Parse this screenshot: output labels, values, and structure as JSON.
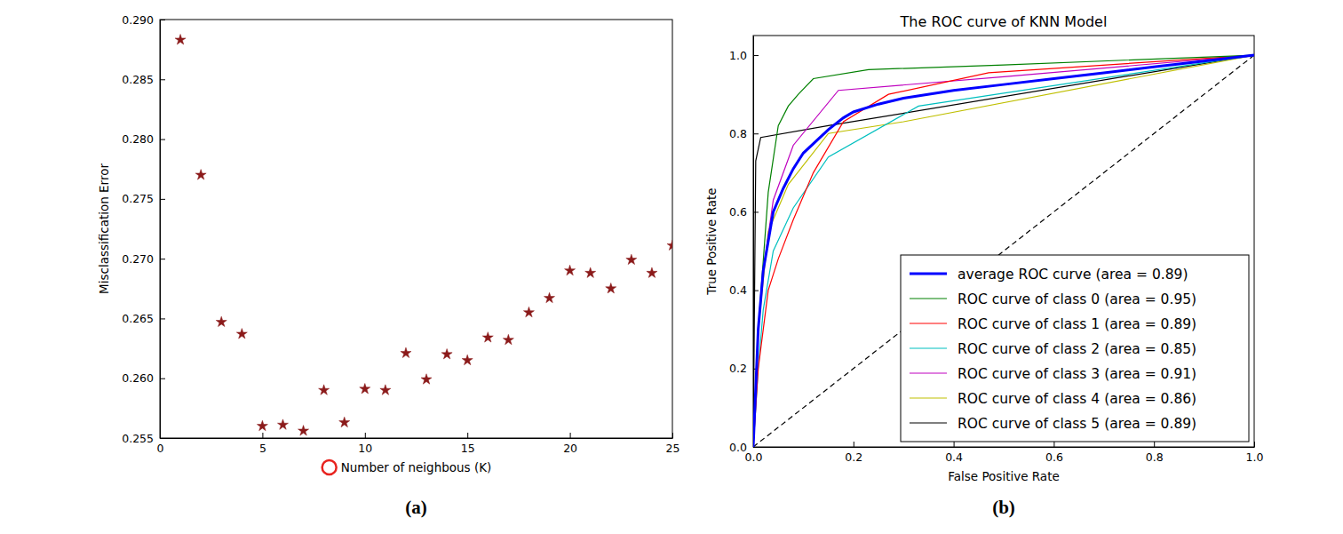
{
  "chart_data": [
    {
      "type": "scatter",
      "caption": "(a)",
      "x_label": "Number of neighbous (K)",
      "y_label": "Misclassification Error",
      "marker": "star",
      "color": "#8b1a1a",
      "x": [
        1,
        2,
        3,
        4,
        5,
        6,
        7,
        8,
        9,
        10,
        11,
        12,
        13,
        14,
        15,
        16,
        17,
        18,
        19,
        20,
        21,
        22,
        23,
        24,
        25
      ],
      "values": [
        0.2883,
        0.277,
        0.2647,
        0.2637,
        0.256,
        0.2561,
        0.2556,
        0.259,
        0.2563,
        0.2591,
        0.259,
        0.2621,
        0.2599,
        0.262,
        0.2615,
        0.2634,
        0.2632,
        0.2655,
        0.2667,
        0.269,
        0.2688,
        0.2675,
        0.2699,
        0.2688,
        0.2711
      ],
      "xlim": [
        0,
        25
      ],
      "ylim": [
        0.255,
        0.29
      ],
      "xticks": [
        0,
        5,
        10,
        15,
        20,
        25
      ],
      "yticks": [
        0.255,
        {
          "value": 0.26,
          "label": "0.260"
        },
        0.265,
        {
          "value": 0.27,
          "label": "0.270"
        },
        0.275,
        {
          "value": 0.28,
          "label": "0.280"
        },
        0.285,
        {
          "value": 0.29,
          "label": "0.290"
        }
      ]
    },
    {
      "type": "line",
      "title": "The ROC curve of KNN Model",
      "caption": "(b)",
      "x_label": "False Positive Rate",
      "y_label": "True Positive Rate",
      "legend": "lower right",
      "xlim": [
        0,
        1
      ],
      "ylim": [
        0,
        1.05
      ],
      "xticks": [
        {
          "value": 0,
          "label": "0.0"
        },
        {
          "value": 0.2,
          "label": "0.2"
        },
        {
          "value": 0.4,
          "label": "0.4"
        },
        {
          "value": 0.6,
          "label": "0.6"
        },
        {
          "value": 0.8,
          "label": "0.8"
        },
        {
          "value": 1,
          "label": "1.0"
        }
      ],
      "yticks": [
        {
          "value": 0,
          "label": "0.0"
        },
        {
          "value": 0.2,
          "label": "0.2"
        },
        {
          "value": 0.4,
          "label": "0.4"
        },
        {
          "value": 0.6,
          "label": "0.6"
        },
        {
          "value": 0.8,
          "label": "0.8"
        },
        {
          "value": 1,
          "label": "1.0"
        }
      ],
      "series": [
        {
          "name": "average ROC curve (area = 0.89)",
          "color": "#0000ff",
          "line_style": "solid",
          "x": [
            0,
            0.01,
            0.02,
            0.04,
            0.06,
            0.08,
            0.1,
            0.15,
            0.18,
            0.2,
            0.25,
            0.3,
            0.4,
            0.5,
            0.6,
            0.7,
            0.8,
            0.9,
            1
          ],
          "values": [
            0,
            0.3,
            0.45,
            0.6,
            0.66,
            0.71,
            0.75,
            0.81,
            0.84,
            0.855,
            0.875,
            0.89,
            0.91,
            0.925,
            0.94,
            0.955,
            0.97,
            0.985,
            1
          ]
        },
        {
          "name": "ROC curve of class 0 (area = 0.95)",
          "color": "#008000",
          "line_style": "solid",
          "x": [
            0,
            0.01,
            0.03,
            0.05,
            0.07,
            0.09,
            0.12,
            0.23,
            0.5,
            1
          ],
          "values": [
            0,
            0.3,
            0.65,
            0.82,
            0.87,
            0.9,
            0.94,
            0.963,
            0.975,
            1
          ]
        },
        {
          "name": "ROC curve of class 1 (area = 0.89)",
          "color": "#ff0000",
          "line_style": "solid",
          "x": [
            0,
            0.01,
            0.03,
            0.05,
            0.08,
            0.12,
            0.18,
            0.27,
            0.47,
            1
          ],
          "values": [
            0,
            0.2,
            0.4,
            0.48,
            0.58,
            0.7,
            0.83,
            0.9,
            0.955,
            1
          ]
        },
        {
          "name": "ROC curve of class 2 (area = 0.85)",
          "color": "#00bfbf",
          "line_style": "solid",
          "x": [
            0,
            0.01,
            0.02,
            0.04,
            0.08,
            0.15,
            0.33,
            1
          ],
          "values": [
            0,
            0.2,
            0.35,
            0.5,
            0.61,
            0.74,
            0.87,
            1
          ]
        },
        {
          "name": "ROC curve of class 3 (area = 0.91)",
          "color": "#bf00bf",
          "line_style": "solid",
          "x": [
            0,
            0.01,
            0.02,
            0.04,
            0.08,
            0.17,
            0.5,
            1
          ],
          "values": [
            0,
            0.3,
            0.45,
            0.63,
            0.77,
            0.91,
            0.945,
            1
          ]
        },
        {
          "name": "ROC curve of class 4 (area = 0.86)",
          "color": "#bfbf00",
          "line_style": "solid",
          "x": [
            0,
            0.01,
            0.03,
            0.07,
            0.15,
            0.3,
            1
          ],
          "values": [
            0,
            0.3,
            0.55,
            0.67,
            0.8,
            0.83,
            1
          ]
        },
        {
          "name": "ROC curve of class 5 (area = 0.89)",
          "color": "#000000",
          "line_style": "solid",
          "x": [
            0,
            0.005,
            0.015,
            0.15,
            1
          ],
          "values": [
            0,
            0.73,
            0.79,
            0.82,
            1
          ]
        },
        {
          "color": "#000000",
          "line_style": "dashed",
          "x": [
            0,
            1
          ],
          "values": [
            0,
            1
          ]
        }
      ]
    }
  ]
}
